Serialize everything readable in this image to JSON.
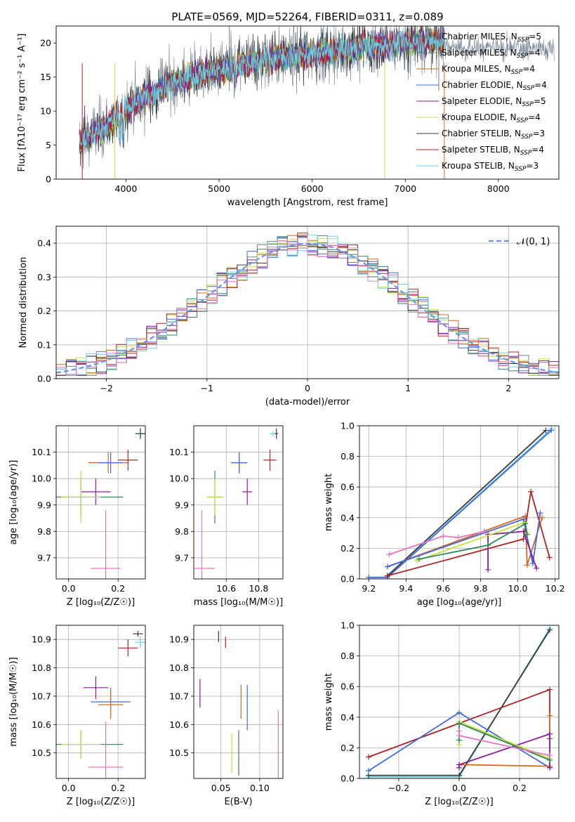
{
  "colors": {
    "Chabrier MILES": "#2e8b57",
    "Salpeter MILES": "#708090",
    "Kroupa MILES": "#d2691e",
    "Chabrier ELODIE": "#4169e1",
    "Salpeter ELODIE": "#8b1a9e",
    "Kroupa ELODIE": "#c8e03c",
    "Chabrier STELIB": "#3a3a3a",
    "Salpeter STELIB": "#b22222",
    "Kroupa STELIB": "#66d3e0",
    "extra_pink": "#e377c2",
    "normal_curve": "#6495ed"
  },
  "chart_data": [
    {
      "id": "spectrum",
      "type": "line",
      "title": "PLATE=0569, MJD=52264, FIBERID=0311, z=0.089",
      "xlabel": "wavelength [Angstrom, rest frame]",
      "ylabel": "Flux [fλ10⁻¹⁷ erg cm⁻² s⁻¹ A⁻¹]",
      "xlim": [
        3250,
        8650
      ],
      "ylim": [
        0,
        22.5
      ],
      "xticks": [
        4000,
        5000,
        6000,
        7000,
        8000
      ],
      "yticks": [
        0,
        5,
        10,
        15,
        20
      ],
      "legend_position": "upper-right",
      "legend": [
        {
          "name": "Chabrier MILES",
          "label": "Chabrier MILES, N",
          "sub": "SSP",
          "suffix": "=5"
        },
        {
          "name": "Salpeter MILES",
          "label": "Salpeter MILES, N",
          "sub": "SSP",
          "suffix": "=4"
        },
        {
          "name": "Kroupa MILES",
          "label": "Kroupa MILES, N",
          "sub": "SSP",
          "suffix": "=4"
        },
        {
          "name": "Chabrier ELODIE",
          "label": "Chabrier ELODIE, N",
          "sub": "SSP",
          "suffix": "=4"
        },
        {
          "name": "Salpeter ELODIE",
          "label": "Salpeter ELODIE, N",
          "sub": "SSP",
          "suffix": "=5"
        },
        {
          "name": "Kroupa ELODIE",
          "label": "Kroupa ELODIE, N",
          "sub": "SSP",
          "suffix": "=4"
        },
        {
          "name": "Chabrier STELIB",
          "label": "Chabrier STELIB, N",
          "sub": "SSP",
          "suffix": "=3"
        },
        {
          "name": "Salpeter STELIB",
          "label": "Salpeter STELIB, N",
          "sub": "SSP",
          "suffix": "=4"
        },
        {
          "name": "Kroupa STELIB",
          "label": "Kroupa STELIB, N",
          "sub": "SSP",
          "suffix": "=3"
        }
      ],
      "continuum": {
        "x": [
          3500,
          3700,
          3850,
          4000,
          4200,
          4400,
          4600,
          4800,
          5000,
          5200,
          5400,
          5600,
          5800,
          6000,
          6200,
          6400,
          6600,
          6800,
          7000,
          7200,
          7400
        ],
        "y": [
          5.5,
          7,
          8.5,
          10.5,
          12,
          13.5,
          14.5,
          15.5,
          16,
          16.8,
          17.3,
          17.8,
          18,
          18.4,
          18.8,
          19.1,
          19.4,
          19.7,
          20,
          20.3,
          20.2
        ]
      },
      "spikes": [
        {
          "x": 5110,
          "y": 22.5,
          "series": "Salpeter MILES"
        },
        {
          "x": 6780,
          "y": 0,
          "series": "Kroupa ELODIE"
        },
        {
          "x": 7420,
          "y": 0,
          "series": "Kroupa MILES"
        },
        {
          "x": 3880,
          "y": 0,
          "series": "Kroupa ELODIE"
        },
        {
          "x": 3530,
          "y": 0,
          "series": "Salpeter STELIB"
        },
        {
          "x": 7360,
          "y": 22.5,
          "series": "Salpeter MILES"
        }
      ]
    },
    {
      "id": "residuals",
      "type": "histogram",
      "xlabel": "(data-model)/error",
      "ylabel": "Normed distribution",
      "xlim": [
        -2.5,
        2.5
      ],
      "ylim": [
        0,
        0.45
      ],
      "xticks": [
        -2,
        -1,
        0,
        1,
        2
      ],
      "yticks": [
        0.0,
        0.1,
        0.2,
        0.3,
        0.4
      ],
      "legend": [
        {
          "name": "normal",
          "label": "𝒩(0, 1)"
        }
      ],
      "bin_width": 0.1,
      "mean_profile": "normal(0,1) with ±0.03 scatter per model"
    },
    {
      "id": "age_vs_Z",
      "type": "errorbar",
      "xlabel": "Z [log₁₀(Z/Z☉)]",
      "ylabel": "age  [log₁₀(age/yr)]",
      "xlim": [
        -0.05,
        0.31
      ],
      "ylim": [
        9.62,
        10.2
      ],
      "xticks": [
        0.0,
        0.2
      ],
      "yticks": [
        9.7,
        9.8,
        9.9,
        10.0,
        10.1
      ],
      "points": [
        {
          "series": "Kroupa STELIB",
          "x": 0.29,
          "xerr": 0.02,
          "y": 10.17,
          "yerr": 0.02
        },
        {
          "series": "Chabrier STELIB",
          "x": 0.29,
          "xerr": 0.02,
          "y": 10.17,
          "yerr": 0.02
        },
        {
          "series": "Kroupa MILES",
          "x": 0.16,
          "xerr": 0.08,
          "y": 10.06,
          "yerr": 0.04
        },
        {
          "series": "Chabrier ELODIE",
          "x": 0.17,
          "xerr": 0.05,
          "y": 10.06,
          "yerr": 0.04
        },
        {
          "series": "Salpeter STELIB",
          "x": 0.24,
          "xerr": 0.04,
          "y": 10.07,
          "yerr": 0.04
        },
        {
          "series": "Salpeter ELODIE",
          "x": 0.11,
          "xerr": 0.06,
          "y": 9.95,
          "yerr": 0.05
        },
        {
          "series": "Chabrier MILES",
          "x": 0.05,
          "xerr": 0.17,
          "y": 9.93,
          "yerr": 0.07
        },
        {
          "series": "Kroupa ELODIE",
          "x": 0.05,
          "xerr": 0.08,
          "y": 9.93,
          "yerr": 0.1
        },
        {
          "series": "extra_pink",
          "x": 0.15,
          "xerr": 0.06,
          "y": 9.66,
          "yerr": 0.22
        }
      ]
    },
    {
      "id": "age_vs_mass",
      "type": "errorbar",
      "xlabel": "mass [log₁₀(M/M☉)]",
      "ylabel": "",
      "xlim": [
        10.4,
        10.95
      ],
      "ylim": [
        9.62,
        10.2
      ],
      "xticks": [
        10.6,
        10.8
      ],
      "yticks": [
        9.7,
        9.8,
        9.9,
        10.0,
        10.1
      ],
      "points": [
        {
          "series": "Kroupa STELIB",
          "x": 10.89,
          "xerr": 0.02,
          "y": 10.17,
          "yerr": 0.01
        },
        {
          "series": "Chabrier STELIB",
          "x": 10.91,
          "xerr": 0.01,
          "y": 10.17,
          "yerr": 0.02
        },
        {
          "series": "Kroupa MILES",
          "x": 10.68,
          "xerr": 0.05,
          "y": 10.06,
          "yerr": 0.04
        },
        {
          "series": "Chabrier ELODIE",
          "x": 10.68,
          "xerr": 0.05,
          "y": 10.06,
          "yerr": 0.04
        },
        {
          "series": "Salpeter STELIB",
          "x": 10.87,
          "xerr": 0.04,
          "y": 10.07,
          "yerr": 0.04
        },
        {
          "series": "Salpeter ELODIE",
          "x": 10.73,
          "xerr": 0.03,
          "y": 9.95,
          "yerr": 0.05
        },
        {
          "series": "Chabrier MILES",
          "x": 10.53,
          "xerr": 0.05,
          "y": 9.93,
          "yerr": 0.1
        },
        {
          "series": "Kroupa ELODIE",
          "x": 10.53,
          "xerr": 0.05,
          "y": 9.93,
          "yerr": 0.07
        },
        {
          "series": "extra_pink",
          "x": 10.45,
          "xerr": 0.08,
          "y": 9.66,
          "yerr": 0.22
        }
      ]
    },
    {
      "id": "weight_vs_age",
      "type": "line",
      "xlabel": "age  [log₁₀(age/yr)]",
      "ylabel": "mass weight",
      "xlim": [
        9.15,
        10.22
      ],
      "ylim": [
        0,
        1.0
      ],
      "xticks": [
        9.2,
        9.4,
        9.6,
        9.8,
        10.0,
        10.2
      ],
      "yticks": [
        0.0,
        0.2,
        0.4,
        0.6,
        0.8,
        1.0
      ],
      "series": [
        {
          "name": "Kroupa STELIB",
          "x": [
            9.2,
            9.3,
            10.18
          ],
          "y": [
            0.01,
            0.01,
            0.98
          ]
        },
        {
          "name": "Chabrier ELODIE",
          "x": [
            9.2,
            9.3,
            10.18
          ],
          "y": [
            0.01,
            0.01,
            0.97
          ]
        },
        {
          "name": "Chabrier STELIB",
          "x": [
            9.3,
            10.15
          ],
          "y": [
            0.02,
            0.97
          ]
        },
        {
          "name": "Kroupa MILES",
          "x": [
            9.3,
            10.04,
            10.05,
            10.13
          ],
          "y": [
            0.08,
            0.41,
            0.09,
            0.4
          ]
        },
        {
          "name": "Salpeter STELIB",
          "x": [
            9.3,
            10.03,
            10.07,
            10.17
          ],
          "y": [
            0.02,
            0.26,
            0.57,
            0.14
          ]
        },
        {
          "name": "Chabrier ELODIE 2",
          "x": [
            9.3,
            10.03,
            10.08,
            10.12
          ],
          "y": [
            0.08,
            0.39,
            0.1,
            0.43
          ]
        },
        {
          "name": "Salpeter ELODIE",
          "x": [
            9.84,
            9.84,
            10.03,
            10.1
          ],
          "y": [
            0.06,
            0.29,
            0.31,
            0.07
          ]
        },
        {
          "name": "Kroupa ELODIE",
          "x": [
            9.46,
            10.04,
            10.05
          ],
          "y": [
            0.12,
            0.37,
            0.3
          ]
        },
        {
          "name": "Chabrier MILES",
          "x": [
            9.47,
            9.84,
            10.04,
            10.05
          ],
          "y": [
            0.13,
            0.22,
            0.36,
            0.29
          ]
        },
        {
          "name": "extra_pink",
          "x": [
            9.31,
            9.6,
            9.68,
            9.82
          ],
          "y": [
            0.16,
            0.28,
            0.27,
            0.31
          ]
        }
      ]
    },
    {
      "id": "mass_vs_Z",
      "type": "errorbar",
      "xlabel": "Z [log₁₀(Z/Z☉)]",
      "ylabel": "mass [log₁₀(M/M☉)]",
      "xlim": [
        -0.05,
        0.31
      ],
      "ylim": [
        10.41,
        10.95
      ],
      "xticks": [
        0.0,
        0.2
      ],
      "yticks": [
        10.5,
        10.6,
        10.7,
        10.8,
        10.9
      ],
      "points": [
        {
          "series": "Chabrier STELIB",
          "x": 0.28,
          "xerr": 0.02,
          "y": 10.92,
          "yerr": 0.01
        },
        {
          "series": "Kroupa STELIB",
          "x": 0.29,
          "xerr": 0.02,
          "y": 10.89,
          "yerr": 0.02
        },
        {
          "series": "Salpeter STELIB",
          "x": 0.24,
          "xerr": 0.04,
          "y": 10.87,
          "yerr": 0.03
        },
        {
          "series": "Salpeter ELODIE",
          "x": 0.11,
          "xerr": 0.05,
          "y": 10.73,
          "yerr": 0.04
        },
        {
          "series": "Chabrier ELODIE",
          "x": 0.17,
          "xerr": 0.08,
          "y": 10.68,
          "yerr": 0.05
        },
        {
          "series": "Kroupa MILES",
          "x": 0.17,
          "xerr": 0.05,
          "y": 10.67,
          "yerr": 0.05
        },
        {
          "series": "Chabrier MILES",
          "x": 0.05,
          "xerr": 0.17,
          "y": 10.53,
          "yerr": 0.05
        },
        {
          "series": "Kroupa ELODIE",
          "x": 0.05,
          "xerr": 0.08,
          "y": 10.53,
          "yerr": 0.05
        },
        {
          "series": "extra_pink",
          "x": 0.15,
          "xerr": 0.07,
          "y": 10.45,
          "yerr": 0.16
        }
      ]
    },
    {
      "id": "mass_vs_ebv",
      "type": "errorbar",
      "xlabel": "E(B-V)",
      "ylabel": "",
      "xlim": [
        0.015,
        0.13
      ],
      "ylim": [
        10.41,
        10.95
      ],
      "xticks": [
        0.05,
        0.1
      ],
      "yticks": [
        10.5,
        10.6,
        10.7,
        10.8,
        10.9
      ],
      "points": [
        {
          "series": "Chabrier STELIB",
          "x": 0.047,
          "yerr": 0.02,
          "y": 10.91
        },
        {
          "series": "Salpeter STELIB",
          "x": 0.056,
          "yerr": 0.02,
          "y": 10.89
        },
        {
          "series": "Salpeter ELODIE",
          "x": 0.023,
          "yerr": 0.05,
          "y": 10.71
        },
        {
          "series": "Kroupa MILES",
          "x": 0.076,
          "yerr": 0.06,
          "y": 10.68
        },
        {
          "series": "Chabrier ELODIE",
          "x": 0.084,
          "yerr": 0.08,
          "y": 10.66
        },
        {
          "series": "Kroupa ELODIE",
          "x": 0.064,
          "yerr": 0.07,
          "y": 10.5
        },
        {
          "series": "Chabrier MILES",
          "x": 0.073,
          "yerr": 0.08,
          "y": 10.5
        },
        {
          "series": "extra_pink",
          "x": 0.124,
          "yerr": 0.12,
          "y": 10.53
        }
      ]
    },
    {
      "id": "weight_vs_Z",
      "type": "line",
      "xlabel": "Z [log₁₀(Z/Z☉)]",
      "ylabel": "mass weight",
      "xlim": [
        -0.33,
        0.33
      ],
      "ylim": [
        0,
        1.0
      ],
      "xticks": [
        -0.2,
        0.0,
        0.2
      ],
      "yticks": [
        0.0,
        0.2,
        0.4,
        0.6,
        0.8,
        1.0
      ],
      "series": [
        {
          "name": "Kroupa STELIB",
          "x": [
            -0.3,
            0.0,
            0.3
          ],
          "y": [
            0.01,
            0.01,
            0.98
          ]
        },
        {
          "name": "Chabrier STELIB",
          "x": [
            -0.3,
            0.0,
            0.3
          ],
          "y": [
            0.02,
            0.02,
            0.97
          ]
        },
        {
          "name": "Salpeter STELIB",
          "x": [
            -0.3,
            0.3,
            0.3
          ],
          "y": [
            0.14,
            0.58,
            0.26
          ]
        },
        {
          "name": "Chabrier ELODIE",
          "x": [
            -0.3,
            0.0,
            0.3
          ],
          "y": [
            0.05,
            0.43,
            0.07
          ]
        },
        {
          "name": "Kroupa MILES",
          "x": [
            0.0,
            0.3,
            0.3
          ],
          "y": [
            0.09,
            0.08,
            0.41
          ]
        },
        {
          "name": "Salpeter ELODIE",
          "x": [
            0.0,
            0.0,
            0.3,
            0.3
          ],
          "y": [
            0.07,
            0.09,
            0.29,
            0.07
          ]
        },
        {
          "name": "Kroupa ELODIE",
          "x": [
            0.0,
            0.0,
            0.3
          ],
          "y": [
            0.22,
            0.37,
            0.13
          ]
        },
        {
          "name": "Chabrier MILES",
          "x": [
            0.0,
            0.0,
            0.3
          ],
          "y": [
            0.25,
            0.36,
            0.12
          ]
        },
        {
          "name": "extra_pink",
          "x": [
            0.0,
            0.0,
            0.3
          ],
          "y": [
            0.31,
            0.28,
            0.15
          ]
        }
      ]
    }
  ]
}
